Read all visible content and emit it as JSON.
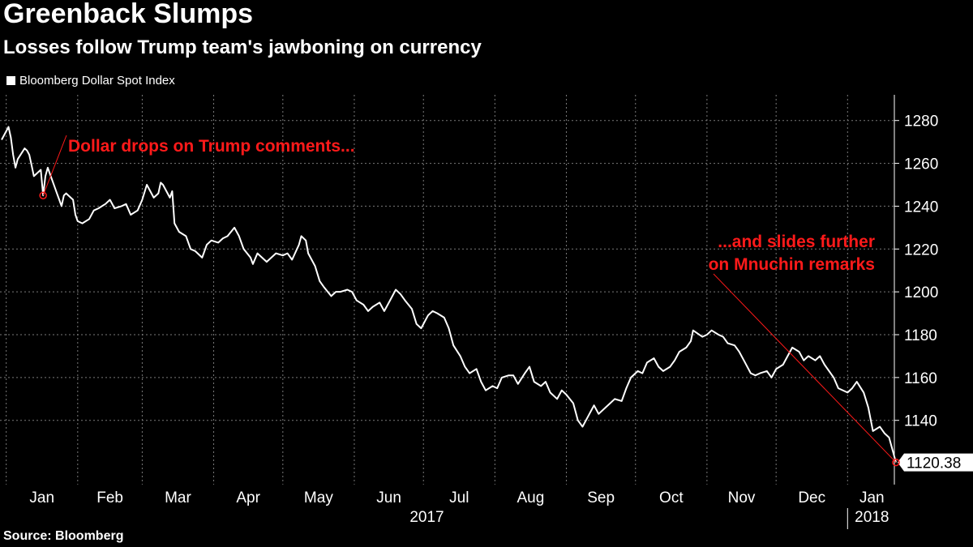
{
  "header": {
    "title": "Greenback Slumps",
    "subtitle": "Losses follow Trump team's jawboning on currency"
  },
  "footer": {
    "source": "Source: Bloomberg"
  },
  "colors": {
    "background": "#000000",
    "line": "#ffffff",
    "annotation": "#ff1a1a",
    "grid": "#7a7a7a"
  },
  "chart_data": {
    "type": "line",
    "title": "Greenback Slumps",
    "subtitle": "Losses follow Trump team's jawboning on currency",
    "xlabel": "",
    "ylabel": "",
    "ylim": [
      1110,
      1292
    ],
    "xlim": [
      "2016-12-30",
      "2018-01-22"
    ],
    "grid": true,
    "legend_placement": "top-left",
    "y_ticks": [
      1140,
      1160,
      1180,
      1200,
      1220,
      1240,
      1260,
      1280
    ],
    "x_month_labels": [
      "Jan",
      "Feb",
      "Mar",
      "Apr",
      "May",
      "Jun",
      "Jul",
      "Aug",
      "Sep",
      "Oct",
      "Nov",
      "Dec",
      "Jan"
    ],
    "x_month_dates": [
      "2017-01-01",
      "2017-02-01",
      "2017-03-01",
      "2017-04-01",
      "2017-05-01",
      "2017-06-01",
      "2017-07-01",
      "2017-08-01",
      "2017-09-01",
      "2017-10-01",
      "2017-11-01",
      "2017-12-01",
      "2018-01-01"
    ],
    "x_year_labels": [
      {
        "label": "2017",
        "start": "2017-01-01",
        "end": "2018-01-01"
      },
      {
        "label": "2018",
        "start": "2018-01-01",
        "end": "2018-01-22"
      }
    ],
    "last_value_label": "1120.38",
    "series": [
      {
        "name": "Bloomberg Dollar Spot Index",
        "points": [
          [
            "2016-12-30",
            1271
          ],
          [
            "2017-01-02",
            1277
          ],
          [
            "2017-01-03",
            1272
          ],
          [
            "2017-01-04",
            1264
          ],
          [
            "2017-01-05",
            1258
          ],
          [
            "2017-01-06",
            1262
          ],
          [
            "2017-01-09",
            1267
          ],
          [
            "2017-01-10",
            1266
          ],
          [
            "2017-01-11",
            1264
          ],
          [
            "2017-01-12",
            1259
          ],
          [
            "2017-01-13",
            1254
          ],
          [
            "2017-01-16",
            1257
          ],
          [
            "2017-01-17",
            1245
          ],
          [
            "2017-01-18",
            1254
          ],
          [
            "2017-01-19",
            1258
          ],
          [
            "2017-01-20",
            1255
          ],
          [
            "2017-01-23",
            1246
          ],
          [
            "2017-01-24",
            1243
          ],
          [
            "2017-01-25",
            1240
          ],
          [
            "2017-01-26",
            1245
          ],
          [
            "2017-01-27",
            1246
          ],
          [
            "2017-01-30",
            1243
          ],
          [
            "2017-01-31",
            1236
          ],
          [
            "2017-02-01",
            1233
          ],
          [
            "2017-02-03",
            1232
          ],
          [
            "2017-02-06",
            1234
          ],
          [
            "2017-02-08",
            1238
          ],
          [
            "2017-02-10",
            1239
          ],
          [
            "2017-02-13",
            1241
          ],
          [
            "2017-02-15",
            1243
          ],
          [
            "2017-02-17",
            1239
          ],
          [
            "2017-02-20",
            1240
          ],
          [
            "2017-02-22",
            1241
          ],
          [
            "2017-02-24",
            1236
          ],
          [
            "2017-02-27",
            1238
          ],
          [
            "2017-03-01",
            1243
          ],
          [
            "2017-03-03",
            1250
          ],
          [
            "2017-03-06",
            1244
          ],
          [
            "2017-03-08",
            1246
          ],
          [
            "2017-03-09",
            1251
          ],
          [
            "2017-03-10",
            1250
          ],
          [
            "2017-03-13",
            1244
          ],
          [
            "2017-03-14",
            1247
          ],
          [
            "2017-03-15",
            1232
          ],
          [
            "2017-03-17",
            1228
          ],
          [
            "2017-03-20",
            1226
          ],
          [
            "2017-03-22",
            1220
          ],
          [
            "2017-03-24",
            1219
          ],
          [
            "2017-03-27",
            1216
          ],
          [
            "2017-03-29",
            1222
          ],
          [
            "2017-03-31",
            1224
          ],
          [
            "2017-04-03",
            1223
          ],
          [
            "2017-04-05",
            1225
          ],
          [
            "2017-04-07",
            1226
          ],
          [
            "2017-04-10",
            1230
          ],
          [
            "2017-04-12",
            1226
          ],
          [
            "2017-04-14",
            1220
          ],
          [
            "2017-04-17",
            1216
          ],
          [
            "2017-04-18",
            1213
          ],
          [
            "2017-04-20",
            1218
          ],
          [
            "2017-04-24",
            1214
          ],
          [
            "2017-04-26",
            1216
          ],
          [
            "2017-04-28",
            1218
          ],
          [
            "2017-05-01",
            1217
          ],
          [
            "2017-05-03",
            1218
          ],
          [
            "2017-05-05",
            1215
          ],
          [
            "2017-05-08",
            1222
          ],
          [
            "2017-05-09",
            1226
          ],
          [
            "2017-05-11",
            1224
          ],
          [
            "2017-05-12",
            1218
          ],
          [
            "2017-05-15",
            1212
          ],
          [
            "2017-05-17",
            1205
          ],
          [
            "2017-05-19",
            1202
          ],
          [
            "2017-05-22",
            1198
          ],
          [
            "2017-05-24",
            1200
          ],
          [
            "2017-05-26",
            1200
          ],
          [
            "2017-05-29",
            1201
          ],
          [
            "2017-05-31",
            1200
          ],
          [
            "2017-06-02",
            1196
          ],
          [
            "2017-06-05",
            1194
          ],
          [
            "2017-06-07",
            1191
          ],
          [
            "2017-06-09",
            1193
          ],
          [
            "2017-06-12",
            1195
          ],
          [
            "2017-06-14",
            1191
          ],
          [
            "2017-06-16",
            1195
          ],
          [
            "2017-06-19",
            1201
          ],
          [
            "2017-06-21",
            1199
          ],
          [
            "2017-06-23",
            1196
          ],
          [
            "2017-06-26",
            1192
          ],
          [
            "2017-06-28",
            1185
          ],
          [
            "2017-06-30",
            1183
          ],
          [
            "2017-07-03",
            1189
          ],
          [
            "2017-07-05",
            1191
          ],
          [
            "2017-07-07",
            1190
          ],
          [
            "2017-07-10",
            1188
          ],
          [
            "2017-07-12",
            1183
          ],
          [
            "2017-07-14",
            1175
          ],
          [
            "2017-07-17",
            1170
          ],
          [
            "2017-07-19",
            1165
          ],
          [
            "2017-07-21",
            1162
          ],
          [
            "2017-07-24",
            1164
          ],
          [
            "2017-07-26",
            1158
          ],
          [
            "2017-07-28",
            1154
          ],
          [
            "2017-07-31",
            1156
          ],
          [
            "2017-08-02",
            1155
          ],
          [
            "2017-08-04",
            1160
          ],
          [
            "2017-08-07",
            1161
          ],
          [
            "2017-08-09",
            1161
          ],
          [
            "2017-08-11",
            1157
          ],
          [
            "2017-08-14",
            1162
          ],
          [
            "2017-08-16",
            1165
          ],
          [
            "2017-08-18",
            1158
          ],
          [
            "2017-08-21",
            1156
          ],
          [
            "2017-08-23",
            1158
          ],
          [
            "2017-08-25",
            1153
          ],
          [
            "2017-08-28",
            1150
          ],
          [
            "2017-08-30",
            1154
          ],
          [
            "2017-09-01",
            1152
          ],
          [
            "2017-09-04",
            1148
          ],
          [
            "2017-09-06",
            1140
          ],
          [
            "2017-09-08",
            1137
          ],
          [
            "2017-09-11",
            1143
          ],
          [
            "2017-09-13",
            1147
          ],
          [
            "2017-09-15",
            1143
          ],
          [
            "2017-09-18",
            1146
          ],
          [
            "2017-09-20",
            1148
          ],
          [
            "2017-09-22",
            1150
          ],
          [
            "2017-09-25",
            1149
          ],
          [
            "2017-09-27",
            1155
          ],
          [
            "2017-09-29",
            1160
          ],
          [
            "2017-10-02",
            1163
          ],
          [
            "2017-10-04",
            1162
          ],
          [
            "2017-10-06",
            1167
          ],
          [
            "2017-10-09",
            1169
          ],
          [
            "2017-10-11",
            1165
          ],
          [
            "2017-10-13",
            1163
          ],
          [
            "2017-10-16",
            1165
          ],
          [
            "2017-10-18",
            1168
          ],
          [
            "2017-10-20",
            1172
          ],
          [
            "2017-10-23",
            1174
          ],
          [
            "2017-10-25",
            1177
          ],
          [
            "2017-10-26",
            1182
          ],
          [
            "2017-10-30",
            1179
          ],
          [
            "2017-11-01",
            1180
          ],
          [
            "2017-11-03",
            1182
          ],
          [
            "2017-11-06",
            1180
          ],
          [
            "2017-11-08",
            1179
          ],
          [
            "2017-11-10",
            1176
          ],
          [
            "2017-11-13",
            1175
          ],
          [
            "2017-11-15",
            1172
          ],
          [
            "2017-11-17",
            1168
          ],
          [
            "2017-11-20",
            1162
          ],
          [
            "2017-11-22",
            1161
          ],
          [
            "2017-11-24",
            1162
          ],
          [
            "2017-11-27",
            1163
          ],
          [
            "2017-11-29",
            1160
          ],
          [
            "2017-12-01",
            1164
          ],
          [
            "2017-12-04",
            1166
          ],
          [
            "2017-12-06",
            1170
          ],
          [
            "2017-12-08",
            1174
          ],
          [
            "2017-12-11",
            1172
          ],
          [
            "2017-12-13",
            1168
          ],
          [
            "2017-12-15",
            1170
          ],
          [
            "2017-12-18",
            1168
          ],
          [
            "2017-12-20",
            1170
          ],
          [
            "2017-12-22",
            1166
          ],
          [
            "2017-12-26",
            1160
          ],
          [
            "2017-12-28",
            1155
          ],
          [
            "2018-01-01",
            1153
          ],
          [
            "2018-01-03",
            1155
          ],
          [
            "2018-01-05",
            1158
          ],
          [
            "2018-01-08",
            1153
          ],
          [
            "2018-01-10",
            1146
          ],
          [
            "2018-01-12",
            1135
          ],
          [
            "2018-01-15",
            1137
          ],
          [
            "2018-01-17",
            1134
          ],
          [
            "2018-01-19",
            1132
          ],
          [
            "2018-01-22",
            1120.38
          ]
        ]
      }
    ],
    "annotations": [
      {
        "text": "Dollar drops on Trump comments...",
        "lines": [
          "Dollar drops on Trump comments..."
        ],
        "date": "2017-01-17",
        "value": 1245
      },
      {
        "text": "...and slides further on Mnuchin remarks",
        "lines": [
          "...and slides further",
          "on Mnuchin remarks"
        ],
        "date": "2018-01-22",
        "value": 1120.38
      }
    ]
  }
}
